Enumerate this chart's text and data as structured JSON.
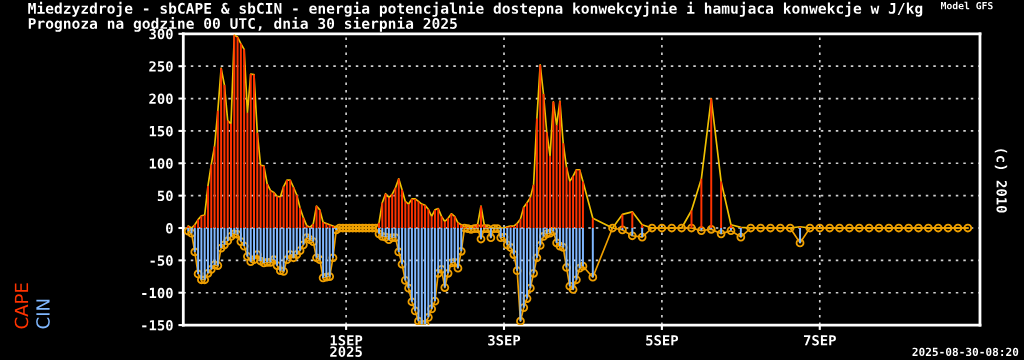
{
  "chart_data": {
    "type": "bar",
    "title": "Miedzyzdroje - sbCAPE & sbCIN - energia potencjalnie dostepna konwekcyjnie i hamujaca konwekcje w J/kg",
    "subtitle": "Prognoza na godzine 00 UTC, dnia 30 sierpnia 2025",
    "annotations": [
      "Model GFS",
      "(c) 2010",
      "2025-08-30-08:20"
    ],
    "x": [
      "2025-08-30T00:00",
      "2025-08-30T01:00",
      "2025-08-30T02:00",
      "2025-08-30T03:00",
      "2025-08-30T04:00",
      "2025-08-30T05:00",
      "2025-08-30T06:00",
      "2025-08-30T07:00",
      "2025-08-30T08:00",
      "2025-08-30T09:00",
      "2025-08-30T10:00",
      "2025-08-30T11:00",
      "2025-08-30T12:00",
      "2025-08-30T13:00",
      "2025-08-30T14:00",
      "2025-08-30T15:00",
      "2025-08-30T16:00",
      "2025-08-30T17:00",
      "2025-08-30T18:00",
      "2025-08-30T19:00",
      "2025-08-30T20:00",
      "2025-08-30T21:00",
      "2025-08-30T22:00",
      "2025-08-30T23:00",
      "2025-08-31T00:00",
      "2025-08-31T01:00",
      "2025-08-31T02:00",
      "2025-08-31T03:00",
      "2025-08-31T04:00",
      "2025-08-31T05:00",
      "2025-08-31T06:00",
      "2025-08-31T07:00",
      "2025-08-31T08:00",
      "2025-08-31T09:00",
      "2025-08-31T10:00",
      "2025-08-31T11:00",
      "2025-08-31T12:00",
      "2025-08-31T13:00",
      "2025-08-31T14:00",
      "2025-08-31T15:00",
      "2025-08-31T16:00",
      "2025-08-31T17:00",
      "2025-08-31T18:00",
      "2025-08-31T19:00",
      "2025-08-31T20:00",
      "2025-08-31T21:00",
      "2025-08-31T22:00",
      "2025-08-31T23:00",
      "2025-09-01T00:00",
      "2025-09-01T01:00",
      "2025-09-01T02:00",
      "2025-09-01T03:00",
      "2025-09-01T04:00",
      "2025-09-01T05:00",
      "2025-09-01T06:00",
      "2025-09-01T07:00",
      "2025-09-01T08:00",
      "2025-09-01T09:00",
      "2025-09-01T10:00",
      "2025-09-01T11:00",
      "2025-09-01T12:00",
      "2025-09-01T13:00",
      "2025-09-01T14:00",
      "2025-09-01T15:00",
      "2025-09-01T16:00",
      "2025-09-01T17:00",
      "2025-09-01T18:00",
      "2025-09-01T19:00",
      "2025-09-01T20:00",
      "2025-09-01T21:00",
      "2025-09-01T22:00",
      "2025-09-01T23:00",
      "2025-09-02T00:00",
      "2025-09-02T01:00",
      "2025-09-02T02:00",
      "2025-09-02T03:00",
      "2025-09-02T04:00",
      "2025-09-02T05:00",
      "2025-09-02T06:00",
      "2025-09-02T07:00",
      "2025-09-02T08:00",
      "2025-09-02T09:00",
      "2025-09-02T10:00",
      "2025-09-02T11:00",
      "2025-09-02T12:00",
      "2025-09-02T13:00",
      "2025-09-02T14:00",
      "2025-09-02T15:00",
      "2025-09-02T16:00",
      "2025-09-02T17:00",
      "2025-09-02T18:00",
      "2025-09-02T19:00",
      "2025-09-02T20:00",
      "2025-09-02T21:00",
      "2025-09-02T22:00",
      "2025-09-02T23:00",
      "2025-09-03T00:00",
      "2025-09-03T01:00",
      "2025-09-03T02:00",
      "2025-09-03T03:00",
      "2025-09-03T04:00",
      "2025-09-03T05:00",
      "2025-09-03T06:00",
      "2025-09-03T07:00",
      "2025-09-03T08:00",
      "2025-09-03T09:00",
      "2025-09-03T10:00",
      "2025-09-03T11:00",
      "2025-09-03T12:00",
      "2025-09-03T13:00",
      "2025-09-03T14:00",
      "2025-09-03T15:00",
      "2025-09-03T16:00",
      "2025-09-03T17:00",
      "2025-09-03T18:00",
      "2025-09-03T19:00",
      "2025-09-03T20:00",
      "2025-09-03T21:00",
      "2025-09-03T22:00",
      "2025-09-03T23:00",
      "2025-09-04T00:00",
      "2025-09-04T03:00",
      "2025-09-04T09:00",
      "2025-09-04T12:00",
      "2025-09-04T15:00",
      "2025-09-04T18:00",
      "2025-09-04T21:00",
      "2025-09-05T00:00",
      "2025-09-05T03:00",
      "2025-09-05T06:00",
      "2025-09-05T09:00",
      "2025-09-05T12:00",
      "2025-09-05T15:00",
      "2025-09-05T18:00",
      "2025-09-05T21:00",
      "2025-09-06T00:00",
      "2025-09-06T03:00",
      "2025-09-06T06:00",
      "2025-09-06T09:00",
      "2025-09-06T12:00",
      "2025-09-06T15:00",
      "2025-09-06T18:00",
      "2025-09-06T21:00",
      "2025-09-07T00:00",
      "2025-09-07T03:00",
      "2025-09-07T06:00",
      "2025-09-07T09:00",
      "2025-09-07T12:00",
      "2025-09-07T15:00",
      "2025-09-07T18:00",
      "2025-09-07T21:00",
      "2025-09-08T00:00",
      "2025-09-08T03:00",
      "2025-09-08T06:00",
      "2025-09-08T09:00",
      "2025-09-08T12:00",
      "2025-09-08T15:00",
      "2025-09-08T18:00",
      "2025-09-08T21:00"
    ],
    "series": [
      {
        "name": "CAPE",
        "color": "#ff3300",
        "values": [
          3,
          0,
          5,
          13,
          19,
          20,
          65,
          98,
          126,
          181,
          247,
          221,
          166,
          161,
          298,
          295,
          285,
          276,
          178,
          238,
          237,
          147,
          97,
          96,
          68,
          58,
          55,
          49,
          48,
          64,
          74,
          74,
          63,
          51,
          31,
          16,
          4,
          1,
          6,
          34,
          28,
          9,
          7,
          5,
          3,
          0,
          0,
          0,
          0,
          0,
          0,
          0,
          0,
          0,
          0,
          0,
          0,
          0,
          8,
          39,
          53,
          47,
          52,
          62,
          76,
          59,
          41,
          37,
          45,
          45,
          41,
          37,
          35,
          29,
          18,
          28,
          30,
          18,
          10,
          15,
          22,
          18,
          8,
          5,
          2,
          1,
          0,
          3,
          6,
          34,
          5,
          1,
          0,
          0,
          0,
          0,
          0,
          2,
          3,
          3,
          7,
          14,
          32,
          39,
          47,
          67,
          169,
          252,
          207,
          148,
          111,
          195,
          159,
          196,
          131,
          94,
          72,
          80,
          90,
          90,
          72,
          15,
          0,
          21,
          25,
          5,
          0,
          0,
          0,
          0,
          27,
          76,
          200,
          72,
          5,
          1,
          0,
          0,
          0,
          0,
          0,
          2,
          0,
          0,
          0,
          0,
          0,
          0,
          0,
          0,
          0,
          0,
          0,
          0,
          0,
          0,
          0,
          0,
          0
        ]
      },
      {
        "name": "CIN",
        "color": "#80b8ff",
        "values": [
          -5,
          -8,
          -37,
          -71,
          -80,
          -80,
          -70,
          -64,
          -57,
          -58,
          -31,
          -26,
          -20,
          -13,
          -9,
          -10,
          -21,
          -28,
          -44,
          -52,
          -49,
          -41,
          -51,
          -54,
          -53,
          -53,
          -49,
          -58,
          -66,
          -67,
          -49,
          -41,
          -46,
          -41,
          -35,
          -26,
          -15,
          -18,
          -21,
          -46,
          -49,
          -77,
          -76,
          -75,
          -46,
          -3,
          0,
          0,
          0,
          0,
          0,
          0,
          0,
          0,
          0,
          0,
          0,
          0,
          -9,
          -13,
          -14,
          -18,
          -15,
          -15,
          -37,
          -56,
          -81,
          -93,
          -114,
          -128,
          -144,
          -149,
          -149,
          -138,
          -125,
          -113,
          -70,
          -64,
          -92,
          -70,
          -54,
          -53,
          -62,
          -36,
          0,
          -1,
          -2,
          -1,
          -1,
          -17,
          -1,
          -1,
          -15,
          -1,
          -1,
          -15,
          -14,
          -26,
          -30,
          -41,
          -66,
          -144,
          -123,
          -109,
          -93,
          -70,
          -46,
          -27,
          -13,
          -9,
          -8,
          -5,
          -23,
          -28,
          -30,
          -61,
          -90,
          -95,
          -80,
          -62,
          -59,
          -76,
          0,
          -3,
          -12,
          -14,
          0,
          0,
          0,
          0,
          0,
          -4,
          -2,
          -9,
          -4,
          -14,
          0,
          0,
          0,
          0,
          0,
          -23,
          0,
          0,
          0,
          0,
          0,
          0,
          0,
          0,
          0,
          0,
          0,
          0,
          0,
          0,
          0,
          0,
          0
        ]
      },
      {
        "type": "line",
        "color": "#f0c000",
        "marker": "none",
        "values": [
          3,
          0,
          5,
          13,
          19,
          20,
          65,
          98,
          126,
          181,
          247,
          221,
          166,
          161,
          298,
          295,
          285,
          276,
          178,
          238,
          237,
          147,
          97,
          96,
          68,
          58,
          55,
          49,
          48,
          64,
          74,
          74,
          63,
          51,
          31,
          16,
          4,
          1,
          6,
          34,
          28,
          9,
          7,
          5,
          3,
          0,
          0,
          0,
          0,
          0,
          0,
          0,
          0,
          0,
          0,
          0,
          0,
          0,
          8,
          39,
          53,
          47,
          52,
          62,
          76,
          59,
          41,
          37,
          45,
          45,
          41,
          37,
          35,
          29,
          18,
          28,
          30,
          18,
          10,
          15,
          22,
          18,
          8,
          5,
          2,
          1,
          0,
          3,
          6,
          34,
          5,
          1,
          0,
          0,
          0,
          0,
          0,
          2,
          3,
          3,
          7,
          14,
          32,
          39,
          47,
          67,
          169,
          252,
          207,
          148,
          111,
          195,
          159,
          196,
          131,
          94,
          72,
          80,
          90,
          90,
          72,
          15,
          0,
          21,
          25,
          5,
          0,
          0,
          0,
          0,
          27,
          76,
          200,
          72,
          5,
          1,
          0,
          0,
          0,
          0,
          0,
          2,
          0,
          0,
          0,
          0,
          0,
          0,
          0,
          0,
          0,
          0,
          0,
          0,
          0,
          0,
          0,
          0,
          0
        ]
      },
      {
        "type": "line",
        "color": "#f0a000",
        "marker": "circle",
        "values": [
          -5,
          -8,
          -37,
          -71,
          -80,
          -80,
          -70,
          -64,
          -57,
          -58,
          -31,
          -26,
          -20,
          -13,
          -9,
          -10,
          -21,
          -28,
          -44,
          -52,
          -49,
          -41,
          -51,
          -54,
          -53,
          -53,
          -49,
          -58,
          -66,
          -67,
          -49,
          -41,
          -46,
          -41,
          -35,
          -26,
          -15,
          -18,
          -21,
          -46,
          -49,
          -77,
          -76,
          -75,
          -46,
          -3,
          0,
          0,
          0,
          0,
          0,
          0,
          0,
          0,
          0,
          0,
          0,
          0,
          -9,
          -13,
          -14,
          -18,
          -15,
          -15,
          -37,
          -56,
          -81,
          -93,
          -114,
          -128,
          -144,
          -149,
          -149,
          -138,
          -125,
          -113,
          -70,
          -64,
          -92,
          -70,
          -54,
          -53,
          -62,
          -36,
          0,
          -1,
          -2,
          -1,
          -1,
          -17,
          -1,
          -1,
          -15,
          -1,
          -1,
          -15,
          -14,
          -26,
          -30,
          -41,
          -66,
          -144,
          -123,
          -109,
          -93,
          -70,
          -46,
          -27,
          -13,
          -9,
          -8,
          -5,
          -23,
          -28,
          -30,
          -61,
          -90,
          -95,
          -80,
          -62,
          -59,
          -76,
          0,
          -3,
          -12,
          -14,
          0,
          0,
          0,
          0,
          0,
          -4,
          -2,
          -9,
          -4,
          -14,
          0,
          0,
          0,
          0,
          0,
          -23,
          0,
          0,
          0,
          0,
          0,
          0,
          0,
          0,
          0,
          0,
          0,
          0,
          0,
          0,
          0,
          0,
          0
        ]
      }
    ],
    "xlim": [
      "2025-08-29T22:30",
      "2025-09-09T00:42"
    ],
    "xticks": [
      {
        "value": "2025-09-01",
        "label": "1SEP\n2025"
      },
      {
        "value": "2025-09-03",
        "label": "3SEP"
      },
      {
        "value": "2025-09-05",
        "label": "5SEP"
      },
      {
        "value": "2025-09-07",
        "label": "7SEP"
      }
    ],
    "ylim": [
      -150,
      300
    ],
    "yticks": [
      -150,
      -100,
      -50,
      0,
      50,
      100,
      150,
      200,
      250,
      300
    ],
    "grid": true,
    "legend": "left"
  }
}
